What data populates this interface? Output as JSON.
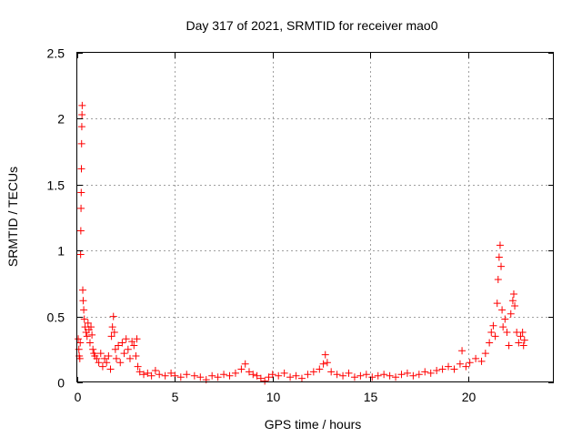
{
  "chart_data": {
    "type": "scatter",
    "title": "Day 317 of 2021, SRMTID for receiver mao0",
    "xlabel": "GPS time / hours",
    "ylabel": "SRMTID / TECUs",
    "xlim": [
      0,
      24.4
    ],
    "ylim": [
      0,
      2.5
    ],
    "x_ticks": [
      0,
      5,
      10,
      15,
      20
    ],
    "x_tick_labels": [
      "0",
      "5",
      "10",
      "15",
      "20"
    ],
    "y_ticks": [
      0,
      0.5,
      1,
      1.5,
      2,
      2.5
    ],
    "y_tick_labels": [
      "0",
      "0.5",
      "1",
      "1.5",
      "2",
      "2.5"
    ],
    "grid": true,
    "marker": "plus",
    "series": [
      {
        "name": "SRMTID",
        "color": "#ff0000",
        "points": [
          [
            0.05,
            0.33
          ],
          [
            0.08,
            0.25
          ],
          [
            0.1,
            0.2
          ],
          [
            0.13,
            0.18
          ],
          [
            0.15,
            0.3
          ],
          [
            0.17,
            0.97
          ],
          [
            0.18,
            1.15
          ],
          [
            0.19,
            1.32
          ],
          [
            0.2,
            1.44
          ],
          [
            0.21,
            1.62
          ],
          [
            0.22,
            1.81
          ],
          [
            0.23,
            1.94
          ],
          [
            0.24,
            2.03
          ],
          [
            0.25,
            2.1
          ],
          [
            0.28,
            0.7
          ],
          [
            0.3,
            0.62
          ],
          [
            0.33,
            0.55
          ],
          [
            0.36,
            0.48
          ],
          [
            0.4,
            0.42
          ],
          [
            0.45,
            0.38
          ],
          [
            0.5,
            0.35
          ],
          [
            0.55,
            0.45
          ],
          [
            0.6,
            0.4
          ],
          [
            0.65,
            0.3
          ],
          [
            0.7,
            0.42
          ],
          [
            0.75,
            0.36
          ],
          [
            0.8,
            0.25
          ],
          [
            0.85,
            0.22
          ],
          [
            0.9,
            0.2
          ],
          [
            1.0,
            0.18
          ],
          [
            1.1,
            0.15
          ],
          [
            1.2,
            0.22
          ],
          [
            1.3,
            0.12
          ],
          [
            1.4,
            0.18
          ],
          [
            1.5,
            0.15
          ],
          [
            1.6,
            0.2
          ],
          [
            1.7,
            0.1
          ],
          [
            1.75,
            0.35
          ],
          [
            1.8,
            0.42
          ],
          [
            1.85,
            0.5
          ],
          [
            1.9,
            0.38
          ],
          [
            1.95,
            0.25
          ],
          [
            2.0,
            0.18
          ],
          [
            2.1,
            0.28
          ],
          [
            2.2,
            0.15
          ],
          [
            2.3,
            0.3
          ],
          [
            2.4,
            0.22
          ],
          [
            2.5,
            0.33
          ],
          [
            2.6,
            0.25
          ],
          [
            2.7,
            0.18
          ],
          [
            2.8,
            0.31
          ],
          [
            2.9,
            0.28
          ],
          [
            3.0,
            0.2
          ],
          [
            3.05,
            0.33
          ],
          [
            3.1,
            0.12
          ],
          [
            3.2,
            0.08
          ],
          [
            3.4,
            0.06
          ],
          [
            3.6,
            0.07
          ],
          [
            3.8,
            0.05
          ],
          [
            4.0,
            0.09
          ],
          [
            4.2,
            0.06
          ],
          [
            4.5,
            0.05
          ],
          [
            4.8,
            0.07
          ],
          [
            5.0,
            0.05
          ],
          [
            5.3,
            0.04
          ],
          [
            5.6,
            0.06
          ],
          [
            6.0,
            0.05
          ],
          [
            6.3,
            0.04
          ],
          [
            6.6,
            0.02
          ],
          [
            6.9,
            0.05
          ],
          [
            7.2,
            0.04
          ],
          [
            7.5,
            0.06
          ],
          [
            7.8,
            0.05
          ],
          [
            8.1,
            0.07
          ],
          [
            8.4,
            0.1
          ],
          [
            8.6,
            0.14
          ],
          [
            8.8,
            0.08
          ],
          [
            9.0,
            0.06
          ],
          [
            9.2,
            0.05
          ],
          [
            9.4,
            0.03
          ],
          [
            9.6,
            0.01
          ],
          [
            9.8,
            0.04
          ],
          [
            10.0,
            0.06
          ],
          [
            10.3,
            0.05
          ],
          [
            10.6,
            0.07
          ],
          [
            10.9,
            0.04
          ],
          [
            11.2,
            0.05
          ],
          [
            11.5,
            0.03
          ],
          [
            11.8,
            0.06
          ],
          [
            12.1,
            0.08
          ],
          [
            12.4,
            0.1
          ],
          [
            12.6,
            0.14
          ],
          [
            12.7,
            0.21
          ],
          [
            12.8,
            0.15
          ],
          [
            13.0,
            0.08
          ],
          [
            13.3,
            0.06
          ],
          [
            13.6,
            0.05
          ],
          [
            13.9,
            0.07
          ],
          [
            14.2,
            0.04
          ],
          [
            14.5,
            0.05
          ],
          [
            14.8,
            0.06
          ],
          [
            15.1,
            0.04
          ],
          [
            15.4,
            0.05
          ],
          [
            15.7,
            0.06
          ],
          [
            16.0,
            0.05
          ],
          [
            16.3,
            0.04
          ],
          [
            16.6,
            0.06
          ],
          [
            16.9,
            0.07
          ],
          [
            17.2,
            0.05
          ],
          [
            17.5,
            0.06
          ],
          [
            17.8,
            0.08
          ],
          [
            18.1,
            0.07
          ],
          [
            18.4,
            0.09
          ],
          [
            18.7,
            0.1
          ],
          [
            19.0,
            0.12
          ],
          [
            19.3,
            0.1
          ],
          [
            19.6,
            0.14
          ],
          [
            19.7,
            0.24
          ],
          [
            19.9,
            0.12
          ],
          [
            20.1,
            0.15
          ],
          [
            20.4,
            0.18
          ],
          [
            20.7,
            0.16
          ],
          [
            20.9,
            0.22
          ],
          [
            21.1,
            0.3
          ],
          [
            21.2,
            0.38
          ],
          [
            21.3,
            0.43
          ],
          [
            21.4,
            0.35
          ],
          [
            21.5,
            0.6
          ],
          [
            21.55,
            0.78
          ],
          [
            21.6,
            0.95
          ],
          [
            21.65,
            1.04
          ],
          [
            21.7,
            0.88
          ],
          [
            21.75,
            0.55
          ],
          [
            21.8,
            0.42
          ],
          [
            21.9,
            0.48
          ],
          [
            22.0,
            0.38
          ],
          [
            22.1,
            0.28
          ],
          [
            22.2,
            0.52
          ],
          [
            22.3,
            0.62
          ],
          [
            22.35,
            0.67
          ],
          [
            22.4,
            0.58
          ],
          [
            22.5,
            0.38
          ],
          [
            22.6,
            0.3
          ],
          [
            22.7,
            0.35
          ],
          [
            22.8,
            0.38
          ],
          [
            22.85,
            0.28
          ],
          [
            22.9,
            0.32
          ]
        ]
      }
    ]
  }
}
